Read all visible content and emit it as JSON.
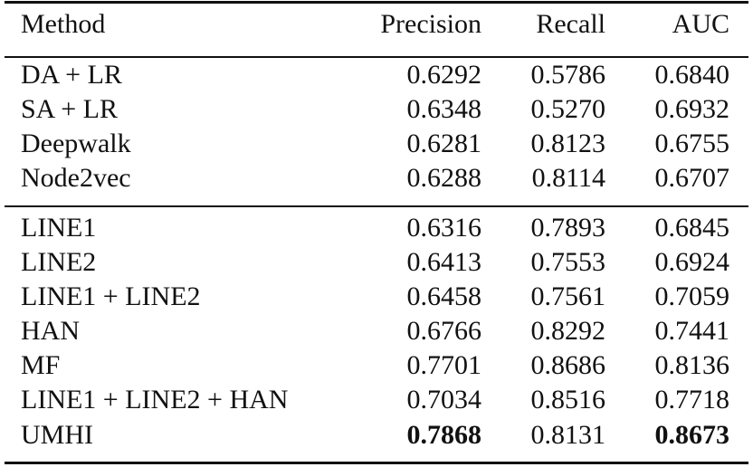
{
  "table": {
    "headers": {
      "method": "Method",
      "precision": "Precision",
      "recall": "Recall",
      "auc": "AUC"
    },
    "group1": [
      {
        "method": "DA + LR",
        "precision": "0.6292",
        "recall": "0.5786",
        "auc": "0.6840"
      },
      {
        "method": "SA + LR",
        "precision": "0.6348",
        "recall": "0.5270",
        "auc": "0.6932"
      },
      {
        "method": "Deepwalk",
        "precision": "0.6281",
        "recall": "0.8123",
        "auc": "0.6755"
      },
      {
        "method": "Node2vec",
        "precision": "0.6288",
        "recall": "0.8114",
        "auc": "0.6707"
      }
    ],
    "group2": [
      {
        "method": "LINE1",
        "precision": "0.6316",
        "recall": "0.7893",
        "auc": "0.6845"
      },
      {
        "method": "LINE2",
        "precision": "0.6413",
        "recall": "0.7553",
        "auc": "0.6924"
      },
      {
        "method": "LINE1 + LINE2",
        "precision": "0.6458",
        "recall": "0.7561",
        "auc": "0.7059"
      },
      {
        "method": "HAN",
        "precision": "0.6766",
        "recall": "0.8292",
        "auc": "0.7441"
      },
      {
        "method": "MF",
        "precision": "0.7701",
        "recall": "0.8686",
        "auc": "0.8136"
      },
      {
        "method": "LINE1 + LINE2 + HAN",
        "precision": "0.7034",
        "recall": "0.8516",
        "auc": "0.7718"
      },
      {
        "method": "UMHI",
        "precision": "0.7868",
        "recall": "0.8131",
        "auc": "0.8673"
      }
    ]
  }
}
